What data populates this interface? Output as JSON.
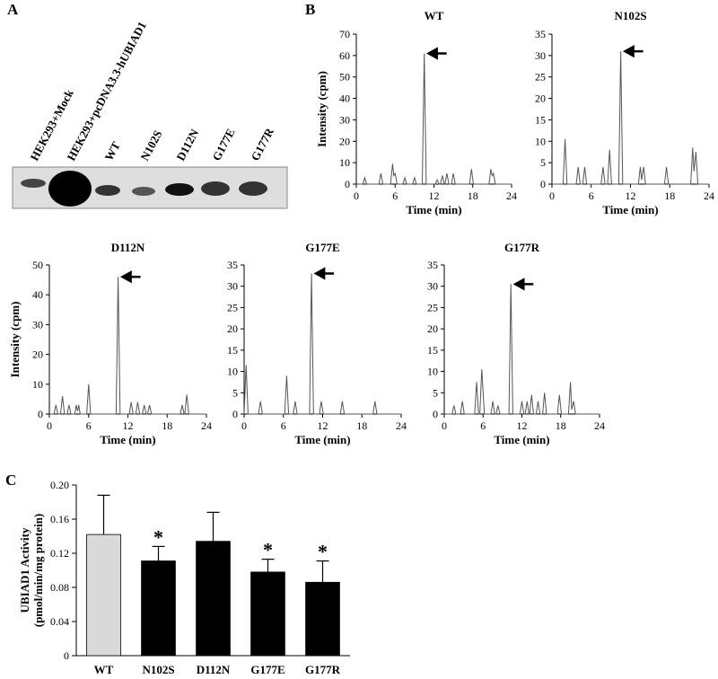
{
  "panel_labels": [
    "A",
    "B",
    "C"
  ],
  "blot": {
    "lanes": [
      "HEK293+Mock",
      "HEK293+pcDNA3.3-hUBIAD1",
      "WT",
      "N102S",
      "D112N",
      "G177E",
      "G177R"
    ]
  },
  "chart_data": [
    {
      "type": "line",
      "title": "WT",
      "xlabel": "Time (min)",
      "ylabel": "Intensity (cpm)",
      "x": [
        0,
        1.0,
        1.3,
        1.6,
        3.5,
        3.8,
        4.1,
        5.3,
        5.6,
        5.8,
        6.0,
        6.3,
        7.2,
        7.5,
        7.8,
        8.7,
        9.0,
        9.3,
        10.2,
        10.5,
        10.8,
        12.2,
        12.5,
        12.8,
        13.0,
        13.3,
        13.6,
        13.7,
        14.0,
        14.3,
        14.7,
        15.0,
        15.3,
        17.5,
        17.8,
        18.1,
        20.5,
        20.8,
        21.0,
        21.2,
        21.5,
        24
      ],
      "values": [
        0,
        0,
        3,
        0,
        0,
        5,
        0,
        0,
        9.5,
        4,
        5,
        0,
        0,
        3,
        0,
        0,
        3,
        0,
        0,
        61,
        0,
        0,
        2,
        0,
        0,
        4,
        0,
        0,
        5,
        0,
        0,
        5,
        0,
        0,
        7,
        0,
        0,
        7,
        4,
        5,
        0,
        0
      ],
      "color": "#555555",
      "xlim": [
        0,
        24
      ],
      "xticks": [
        0,
        6,
        12,
        18,
        24
      ],
      "ylim": [
        0,
        70
      ],
      "yticks": [
        0,
        10,
        20,
        30,
        40,
        50,
        60,
        70
      ]
    },
    {
      "type": "line",
      "title": "N102S",
      "xlabel": "Time (min)",
      "x": [
        0,
        1.7,
        2.0,
        2.3,
        3.7,
        4.0,
        4.3,
        4.7,
        5.0,
        5.3,
        7.5,
        7.8,
        8.1,
        8.5,
        8.8,
        9.1,
        10.2,
        10.5,
        10.8,
        13.2,
        13.5,
        13.7,
        14.0,
        14.3,
        17.2,
        17.5,
        17.8,
        21.2,
        21.5,
        21.7,
        22.0,
        22.3,
        24
      ],
      "values": [
        0,
        0,
        10.5,
        0,
        0,
        4,
        0,
        0,
        4,
        0,
        0,
        4,
        0,
        0,
        8,
        0,
        0,
        31,
        0,
        0,
        4,
        1,
        4,
        0,
        0,
        4,
        0,
        0,
        8.5,
        3,
        7.5,
        0,
        0
      ],
      "color": "#555555",
      "xlim": [
        0,
        24
      ],
      "xticks": [
        0,
        6,
        12,
        18,
        24
      ],
      "ylim": [
        0,
        35
      ],
      "yticks": [
        0,
        5,
        10,
        15,
        20,
        25,
        30,
        35
      ]
    },
    {
      "type": "line",
      "title": "D112N",
      "xlabel": "Time (min)",
      "ylabel": "Intensity (cpm)",
      "x": [
        0,
        0.7,
        1.0,
        1.3,
        1.7,
        2.0,
        2.3,
        2.7,
        3.0,
        3.3,
        3.9,
        4.1,
        4.3,
        4.5,
        4.7,
        5.7,
        6.0,
        6.3,
        10.2,
        10.5,
        10.8,
        12.2,
        12.5,
        12.8,
        13.2,
        13.5,
        13.8,
        14.2,
        14.5,
        14.8,
        15.0,
        15.3,
        15.6,
        20.0,
        20.3,
        20.6,
        20.7,
        21.0,
        21.3,
        24
      ],
      "values": [
        0,
        0,
        3,
        0,
        0,
        6,
        0,
        0,
        3,
        0,
        0,
        3,
        1,
        3,
        0,
        0,
        10,
        0,
        0,
        46,
        0,
        0,
        4,
        0,
        0,
        4,
        0,
        0,
        3,
        0,
        0,
        3,
        0,
        0,
        3,
        0,
        0,
        6.5,
        0,
        0
      ],
      "color": "#555555",
      "xlim": [
        0,
        24
      ],
      "xticks": [
        0,
        6,
        12,
        18,
        24
      ],
      "ylim": [
        0,
        50
      ],
      "yticks": [
        0,
        10,
        20,
        30,
        40,
        50
      ]
    },
    {
      "type": "line",
      "title": "G177E",
      "xlabel": "Time (min)",
      "x": [
        0,
        0.3,
        0.6,
        2.2,
        2.5,
        2.8,
        6.2,
        6.5,
        6.8,
        7.5,
        7.8,
        8.1,
        10.0,
        10.3,
        10.6,
        11.5,
        11.8,
        12.1,
        14.7,
        15.0,
        15.3,
        19.7,
        20.0,
        20.3,
        24
      ],
      "values": [
        0,
        11.5,
        0,
        0,
        3,
        0,
        0,
        9,
        0,
        0,
        3,
        0,
        0,
        33,
        0,
        0,
        3,
        0,
        0,
        3,
        0,
        0,
        3,
        0,
        0
      ],
      "color": "#555555",
      "xlim": [
        0,
        24
      ],
      "xticks": [
        0,
        6,
        12,
        18,
        24
      ],
      "ylim": [
        0,
        35
      ],
      "yticks": [
        0,
        5,
        10,
        15,
        20,
        25,
        30,
        35
      ]
    },
    {
      "type": "line",
      "title": "G177R",
      "xlabel": "Time (min)",
      "x": [
        0,
        1.2,
        1.5,
        1.8,
        2.5,
        2.8,
        3.1,
        4.7,
        5.0,
        5.3,
        5.5,
        5.8,
        6.2,
        7.2,
        7.5,
        7.8,
        8.0,
        8.3,
        8.6,
        10.0,
        10.3,
        10.6,
        11.7,
        12.0,
        12.3,
        12.5,
        12.8,
        13.1,
        13.2,
        13.5,
        13.8,
        14.2,
        14.5,
        14.8,
        15.2,
        15.5,
        15.8,
        17.5,
        17.8,
        18.1,
        19.2,
        19.5,
        19.7,
        20.0,
        20.3,
        24
      ],
      "values": [
        0,
        0,
        2,
        0,
        0,
        3,
        0,
        0,
        7.5,
        0,
        0,
        10.5,
        0,
        0,
        3,
        0,
        0,
        2,
        0,
        0,
        30.5,
        0,
        0,
        3,
        0,
        0,
        3,
        0,
        0,
        4.5,
        0,
        0,
        3,
        0,
        0,
        5,
        0,
        0,
        4.5,
        0,
        0,
        7.5,
        1,
        3,
        0,
        0
      ],
      "color": "#555555",
      "xlim": [
        0,
        24
      ],
      "xticks": [
        0,
        6,
        12,
        18,
        24
      ],
      "ylim": [
        0,
        35
      ],
      "yticks": [
        0,
        5,
        10,
        15,
        20,
        25,
        30,
        35
      ]
    },
    {
      "type": "bar",
      "ylabel": [
        "UBIAD1 Activity",
        "(pmol/min/mg protein)"
      ],
      "categories": [
        "WT",
        "N102S",
        "D112N",
        "G177E",
        "G177R"
      ],
      "values": [
        0.142,
        0.111,
        0.134,
        0.098,
        0.086
      ],
      "errors": [
        0.046,
        0.017,
        0.034,
        0.015,
        0.025
      ],
      "colors": [
        "#d9d9d9",
        "#000000",
        "#000000",
        "#000000",
        "#000000"
      ],
      "markers": [
        null,
        "*",
        null,
        "*",
        "*"
      ],
      "ylim": [
        0,
        0.2
      ],
      "yticks": [
        0,
        0.04,
        0.08,
        0.12,
        0.16,
        {
          "value": 0.2,
          "label": "0.20"
        }
      ]
    }
  ]
}
